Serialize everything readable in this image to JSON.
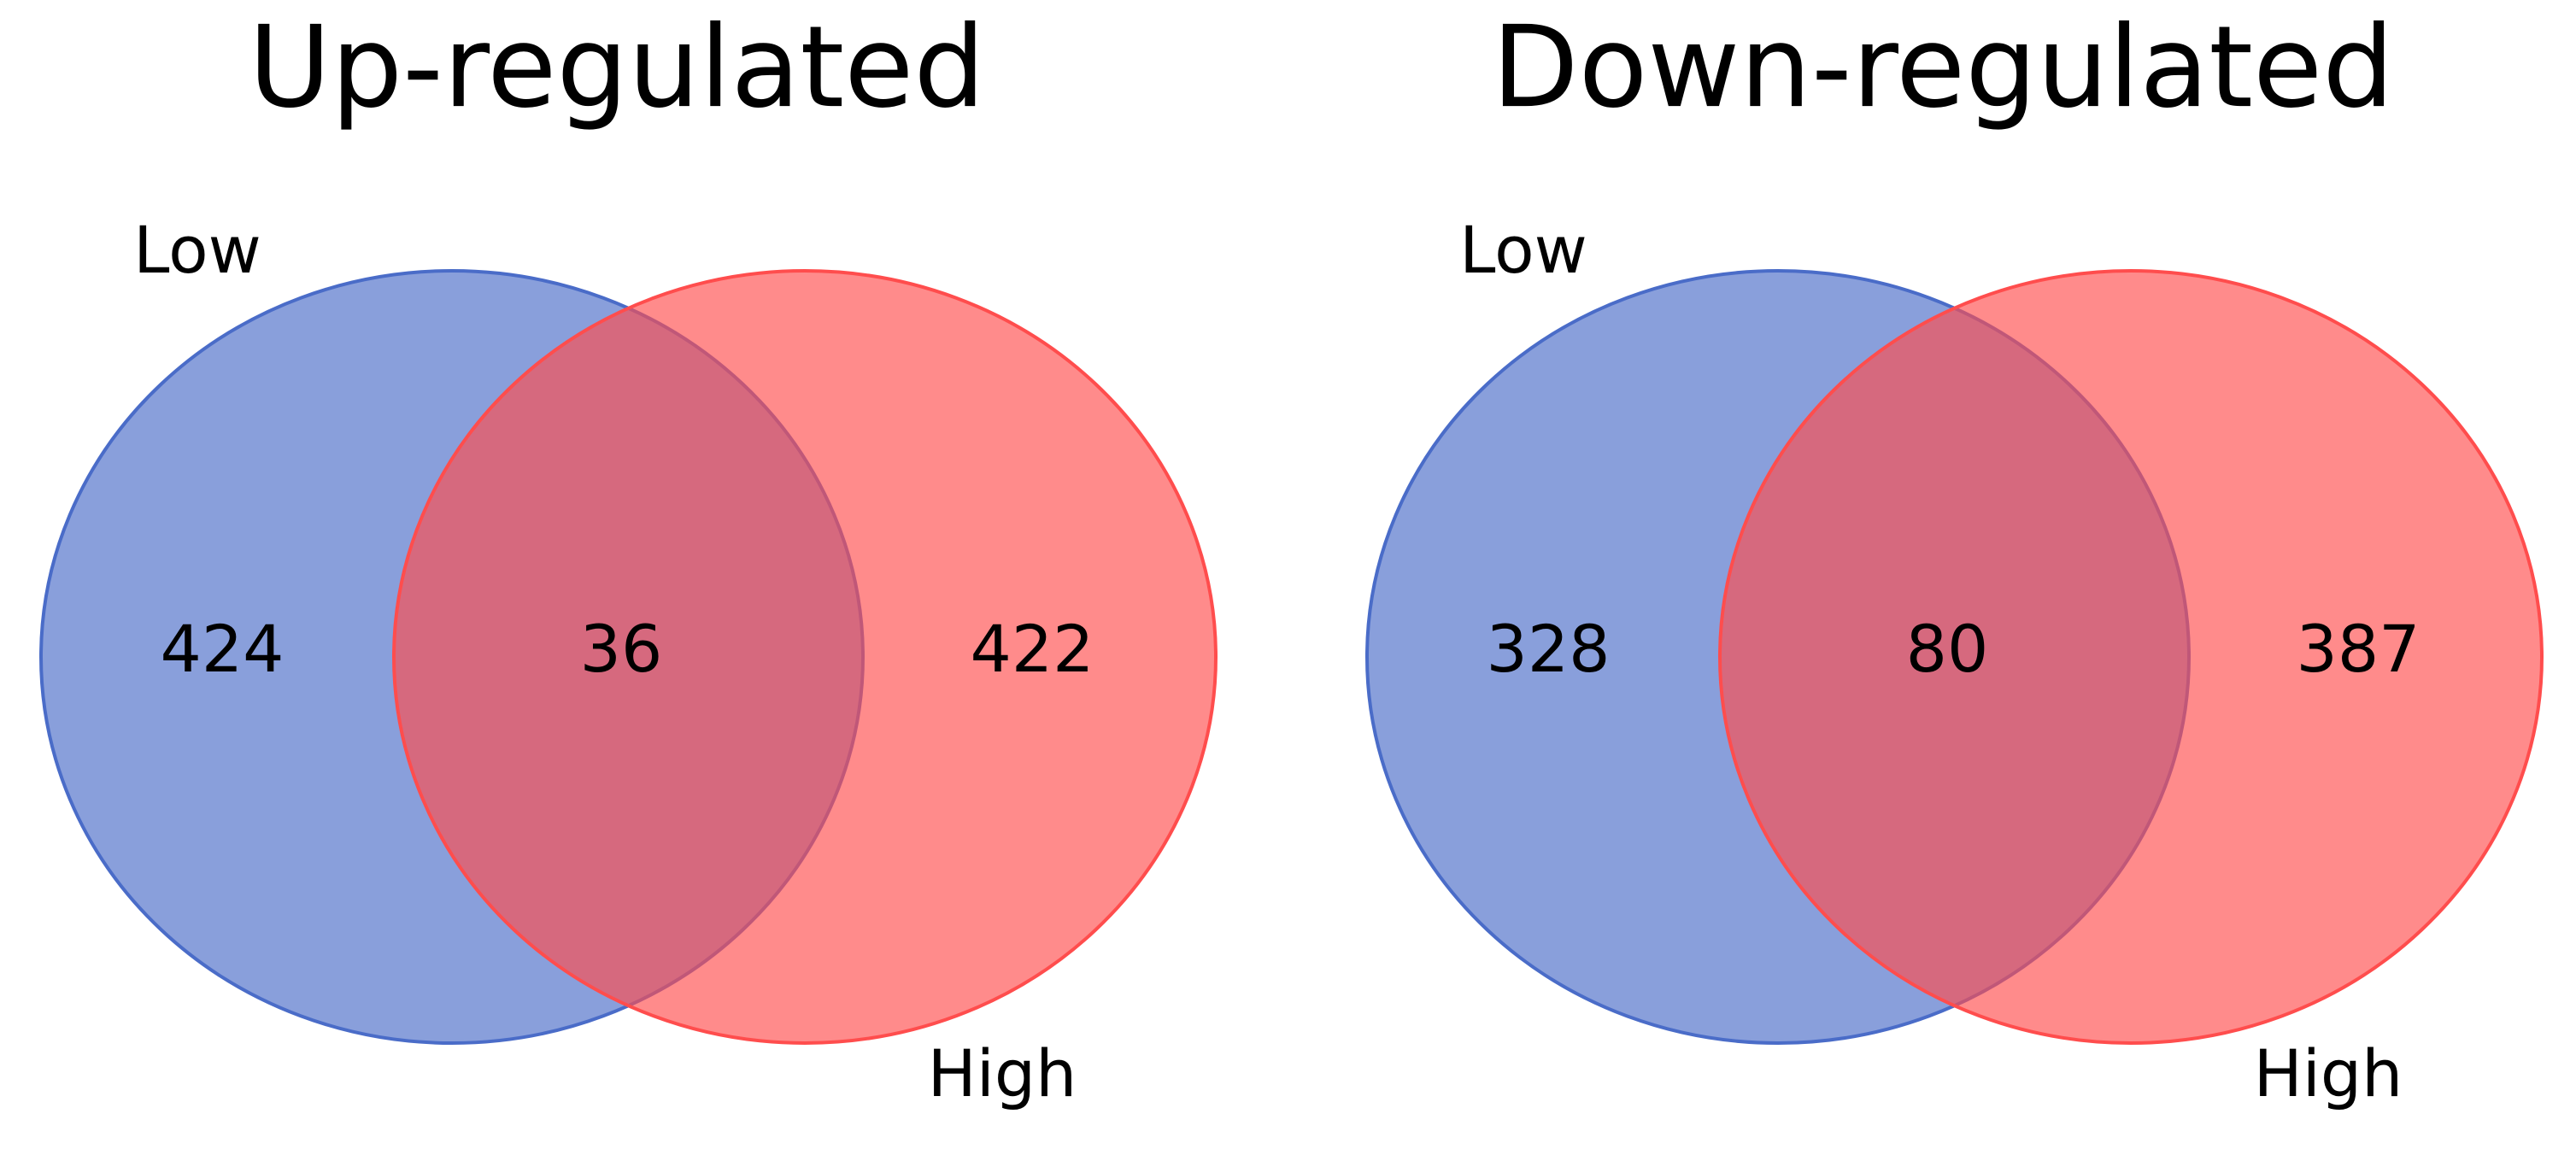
{
  "chart_data": [
    {
      "type": "venn",
      "title": "Up-regulated",
      "sets": [
        {
          "name": "Low",
          "color": "#4a6cc8"
        },
        {
          "name": "High",
          "color": "#ff4d4d"
        }
      ],
      "values": [
        424,
        36,
        422
      ]
    },
    {
      "type": "venn",
      "title": "Down-regulated",
      "sets": [
        {
          "name": "Low",
          "color": "#4a6cc8"
        },
        {
          "name": "High",
          "color": "#ff4d4d"
        }
      ],
      "values": [
        328,
        80,
        387
      ]
    }
  ]
}
